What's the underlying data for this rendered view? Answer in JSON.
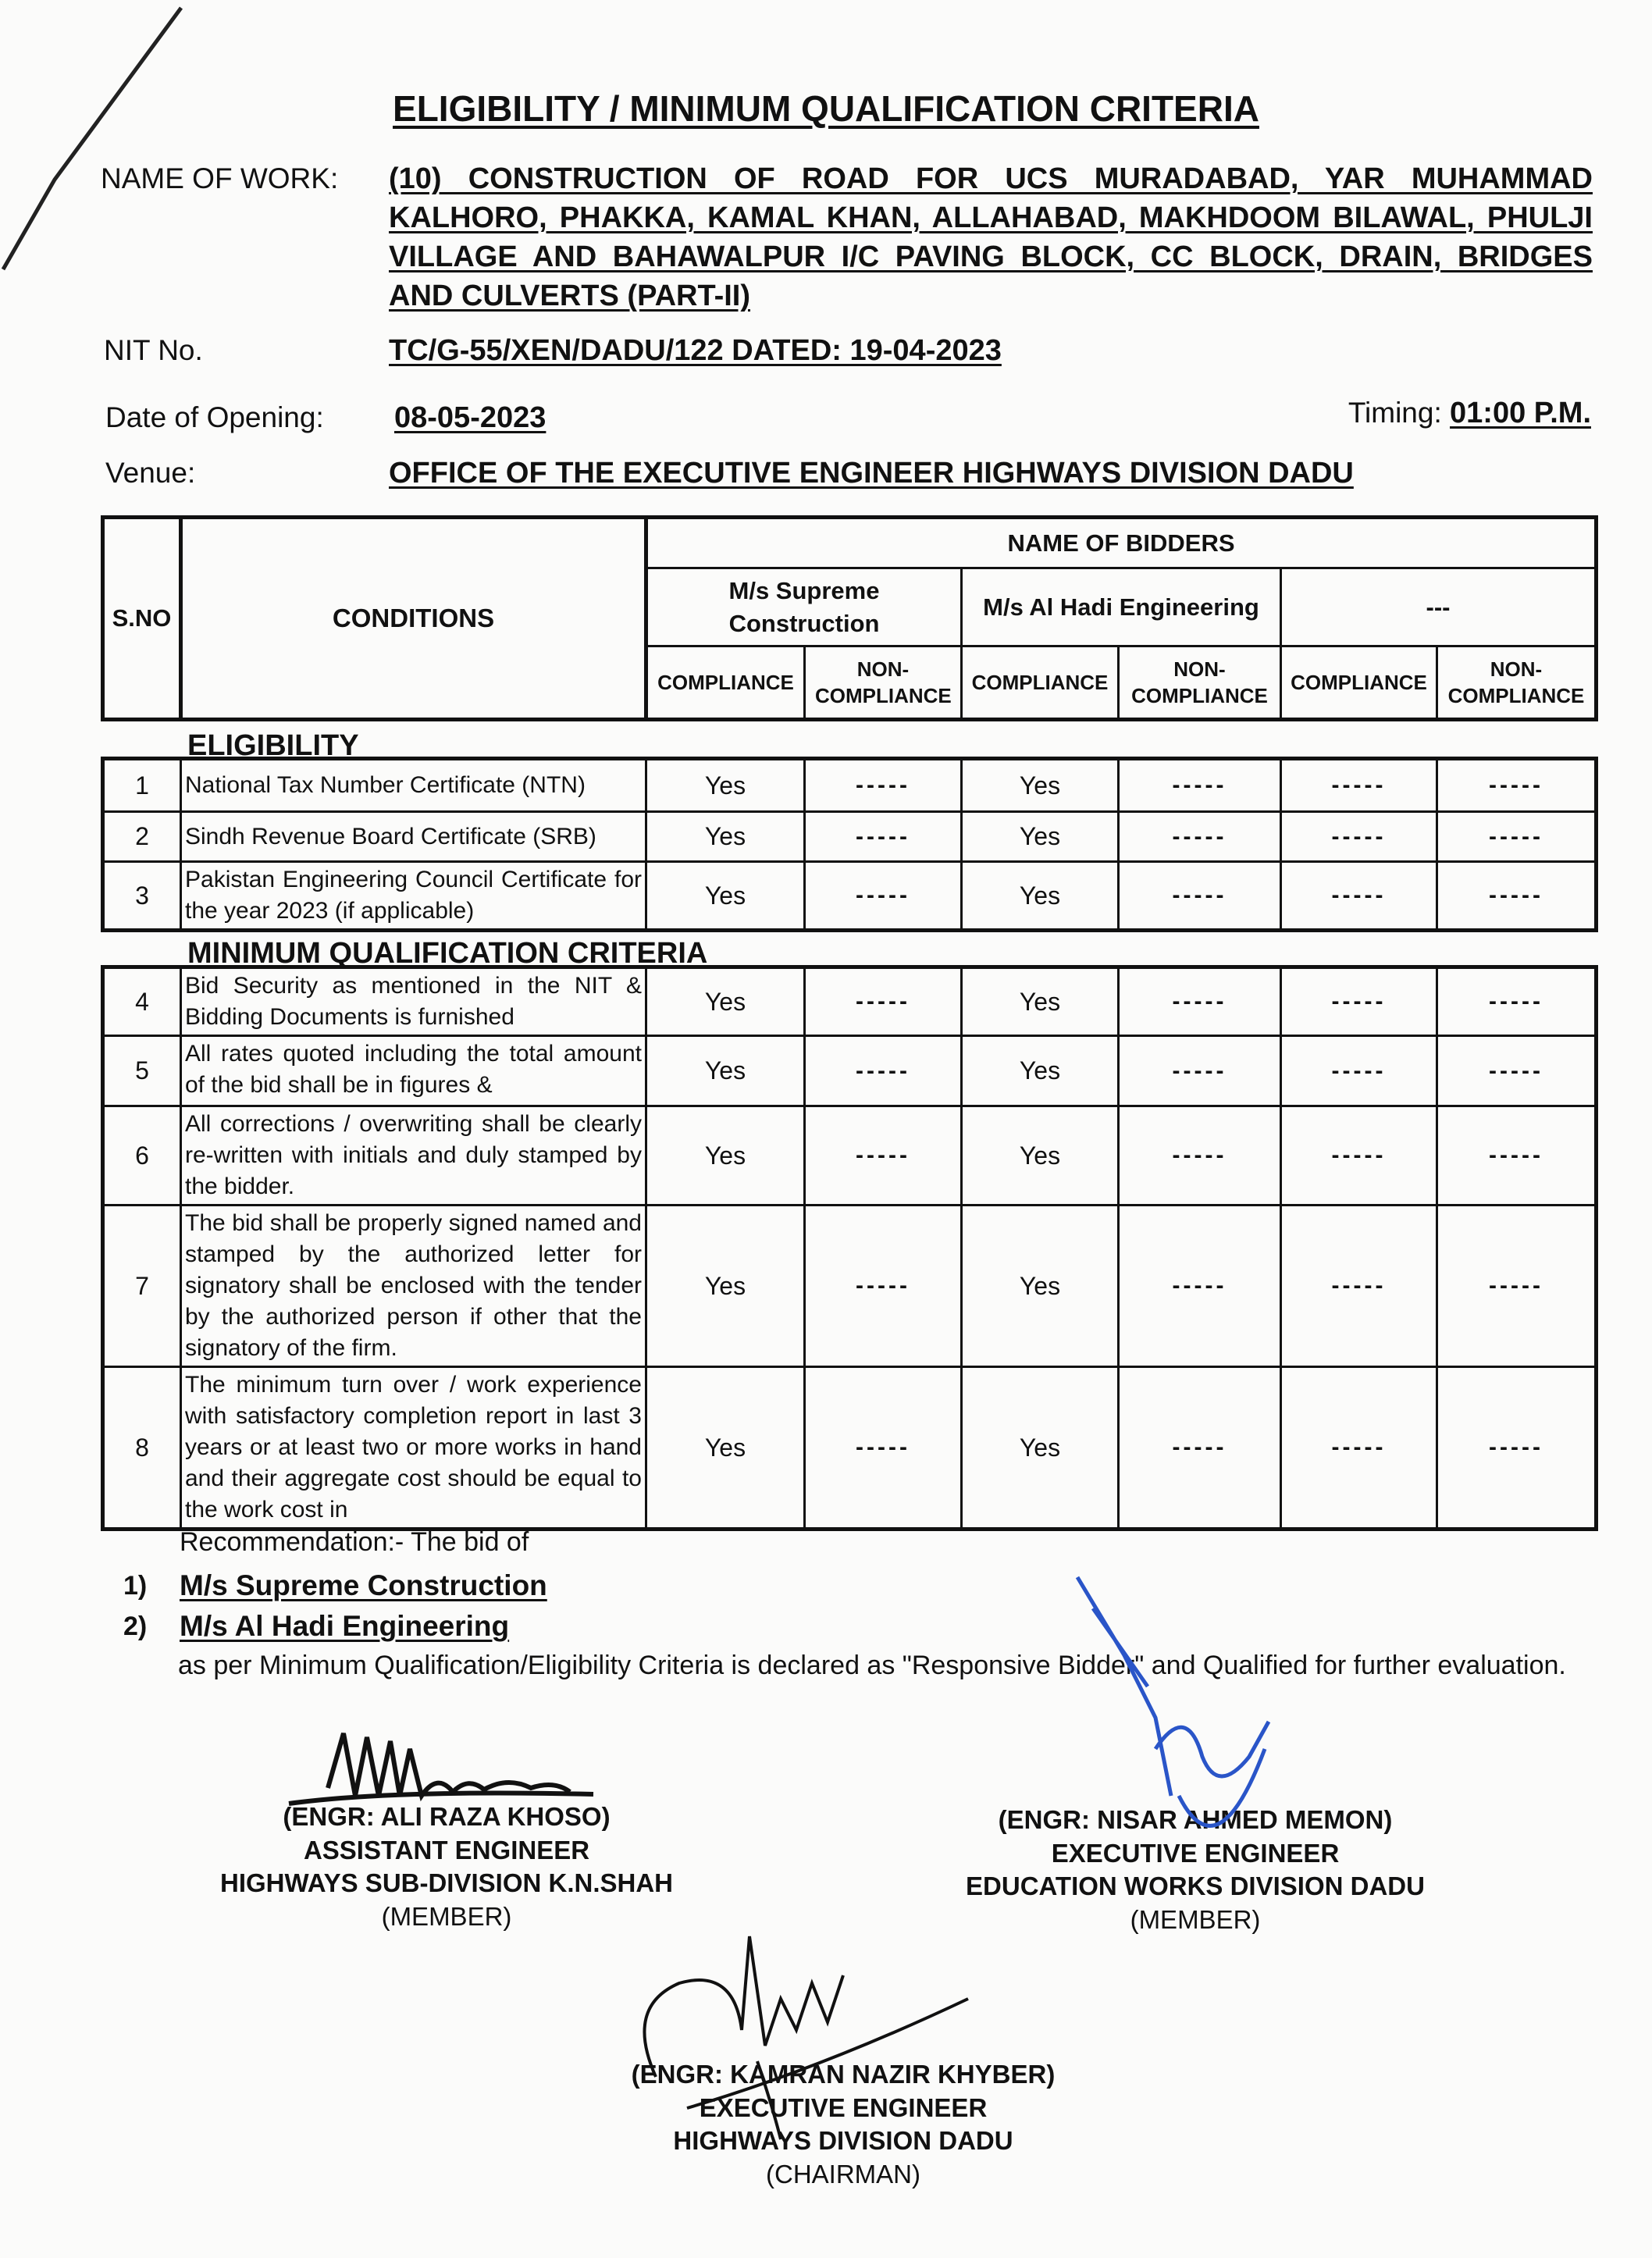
{
  "title": "ELIGIBILITY / MINIMUM QUALIFICATION CRITERIA",
  "name_of_work": {
    "label": "NAME OF WORK:",
    "value": "(10) CONSTRUCTION OF ROAD FOR UCS MURADABAD, YAR MUHAMMAD KALHORO, PHAKKA, KAMAL KHAN, ALLAHABAD, MAKHDOOM BILAWAL, PHULJI VILLAGE AND BAHAWALPUR I/C PAVING BLOCK, CC BLOCK, DRAIN, BRIDGES AND CULVERTS (PART-II)"
  },
  "nit": {
    "label": "NIT No.",
    "value": "TC/G-55/XEN/DADU/122 DATED: 19-04-2023"
  },
  "opening": {
    "label": "Date of Opening:",
    "value": "08-05-2023"
  },
  "timing": {
    "label": "Timing:",
    "value": "01:00 P.M."
  },
  "venue": {
    "label": "Venue:",
    "value": "OFFICE OF THE EXECUTIVE ENGINEER HIGHWAYS DIVISION DADU"
  },
  "table": {
    "sno_header": "S.NO",
    "conditions_header": "CONDITIONS",
    "bidders_header": "NAME OF BIDDERS",
    "bidders": [
      "M/s Supreme Construction",
      "M/s Al Hadi Engineering",
      "---"
    ],
    "compliance": "COMPLIANCE",
    "non_compliance": "NON-COMPLIANCE",
    "sections": [
      {
        "title": "ELIGIBILITY",
        "rows": [
          {
            "sno": "1",
            "condition": "National Tax Number Certificate (NTN)",
            "cells": [
              "Yes",
              "-----",
              "Yes",
              "-----",
              "-----",
              "-----"
            ]
          },
          {
            "sno": "2",
            "condition": "Sindh Revenue Board Certificate (SRB)",
            "cells": [
              "Yes",
              "-----",
              "Yes",
              "-----",
              "-----",
              "-----"
            ]
          },
          {
            "sno": "3",
            "condition": "Pakistan Engineering Council Certificate for the year 2023 (if applicable)",
            "cells": [
              "Yes",
              "-----",
              "Yes",
              "-----",
              "-----",
              "-----"
            ]
          }
        ]
      },
      {
        "title": "MINIMUM QUALIFICATION CRITERIA",
        "rows": [
          {
            "sno": "4",
            "condition": "Bid Security as mentioned in the NIT & Bidding Documents is furnished",
            "cells": [
              "Yes",
              "-----",
              "Yes",
              "-----",
              "-----",
              "-----"
            ]
          },
          {
            "sno": "5",
            "condition": "All rates quoted including the total amount of the bid shall be in figures &",
            "cells": [
              "Yes",
              "-----",
              "Yes",
              "-----",
              "-----",
              "-----"
            ]
          },
          {
            "sno": "6",
            "condition": "All corrections / overwriting shall be clearly re-written with initials and duly stamped by the bidder.",
            "cells": [
              "Yes",
              "-----",
              "Yes",
              "-----",
              "-----",
              "-----"
            ]
          },
          {
            "sno": "7",
            "condition": "The bid shall be properly signed named and stamped by the authorized letter for signatory shall be enclosed with the tender by the authorized person if other that the signatory of the firm.",
            "cells": [
              "Yes",
              "-----",
              "Yes",
              "-----",
              "-----",
              "-----"
            ]
          },
          {
            "sno": "8",
            "condition": "The minimum turn over / work experience with satisfactory completion report in last 3 years or at least two or more works in hand and their aggregate cost should be equal to the work cost in",
            "cells": [
              "Yes",
              "-----",
              "Yes",
              "-----",
              "-----",
              "-----"
            ]
          }
        ]
      }
    ]
  },
  "recommendation": {
    "intro": "Recommendation:- The bid of",
    "bidders": [
      {
        "num": "1)",
        "name": "M/s Supreme Construction"
      },
      {
        "num": "2)",
        "name": "M/s Al Hadi Engineering"
      }
    ],
    "conclusion": "as per Minimum Qualification/Eligibility Criteria is declared as \"Responsive Bidder\" and Qualified for further evaluation."
  },
  "signatories": [
    {
      "name": "(ENGR: ALI RAZA KHOSO)",
      "designation": "ASSISTANT ENGINEER",
      "office": "HIGHWAYS SUB-DIVISION K.N.SHAH",
      "role": "(MEMBER)"
    },
    {
      "name": "(ENGR: NISAR AHMED MEMON)",
      "designation": "EXECUTIVE ENGINEER",
      "office": "EDUCATION WORKS DIVISION DADU",
      "role": "(MEMBER)"
    },
    {
      "name": "(ENGR: KAMRAN NAZIR KHYBER)",
      "designation": "EXECUTIVE ENGINEER",
      "office": "HIGHWAYS DIVISION DADU",
      "role": "(CHAIRMAN)"
    }
  ],
  "colors": {
    "ink": "#111111",
    "pen_blue": "#2a55c8",
    "paper": "#fbfbfa"
  }
}
